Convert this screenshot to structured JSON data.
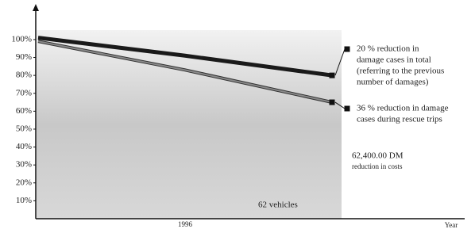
{
  "chart_data": {
    "type": "line",
    "categories": [
      null,
      "1996",
      null
    ],
    "x_label": "Year",
    "series": [
      {
        "name": [
          "20 % reduction in",
          "damage cases in total",
          "(referring to the previous",
          "number of damages)"
        ],
        "color": "#1a1a1a",
        "values": [
          101,
          91,
          80
        ]
      },
      {
        "name": [
          "36 % reduction in damage",
          "cases during rescue trips"
        ],
        "color": "#8a8a8a",
        "values": [
          99,
          83,
          65
        ]
      }
    ],
    "ylim": [
      0,
      115
    ],
    "yticks": [
      {
        "value": 10,
        "label": "10%"
      },
      {
        "value": 20,
        "label": "20%"
      },
      {
        "value": 30,
        "label": "30%"
      },
      {
        "value": 40,
        "label": "40%"
      },
      {
        "value": 50,
        "label": "50%"
      },
      {
        "value": 60,
        "label": "60%"
      },
      {
        "value": 70,
        "label": "70%"
      },
      {
        "value": 80,
        "label": "80%"
      },
      {
        "value": 90,
        "label": "90%"
      },
      {
        "value": 100,
        "label": "100%"
      }
    ],
    "annotations": [
      [
        "62,400.00 DM",
        "reduction in costs"
      ],
      [
        "62 vehicles"
      ]
    ]
  }
}
